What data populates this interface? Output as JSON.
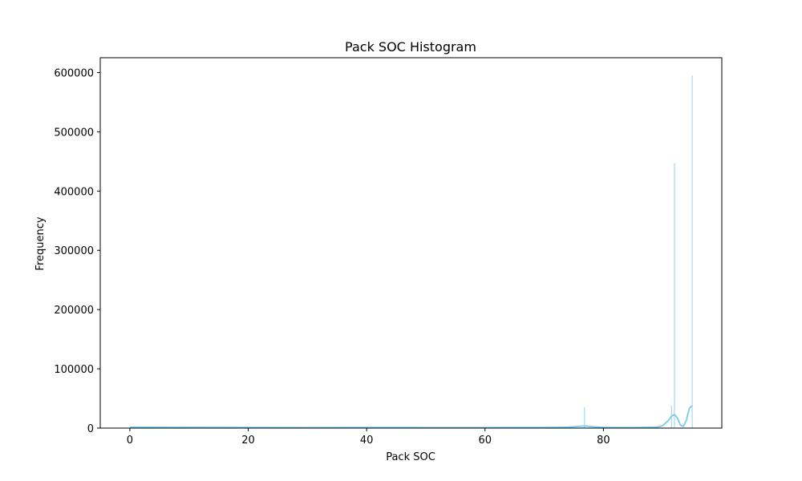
{
  "chart_data": {
    "type": "histogram",
    "title": "Pack SOC Histogram",
    "xlabel": "Pack SOC",
    "ylabel": "Frequency",
    "xlim": [
      -5,
      100
    ],
    "ylim": [
      0,
      625000
    ],
    "x_ticks": [
      0,
      20,
      40,
      60,
      80
    ],
    "x_tick_labels": [
      "0",
      "20",
      "40",
      "60",
      "80"
    ],
    "y_ticks": [
      0,
      100000,
      200000,
      300000,
      400000,
      500000,
      600000
    ],
    "y_tick_labels": [
      "0",
      "100000",
      "200000",
      "300000",
      "400000",
      "500000",
      "600000"
    ],
    "grid": false,
    "legend": "none",
    "bar_color": "#87ceeb",
    "kde_color": "#87ceeb",
    "bars": [
      {
        "x": 76.8,
        "y": 35000
      },
      {
        "x": 91.5,
        "y": 38000
      },
      {
        "x": 92.0,
        "y": 447000
      },
      {
        "x": 95.0,
        "y": 595000
      },
      {
        "x": 0.5,
        "y": 1200
      },
      {
        "x": 12.5,
        "y": 600
      },
      {
        "x": 40.0,
        "y": 800
      },
      {
        "x": 60.0,
        "y": 600
      }
    ],
    "kde": {
      "x": [
        0,
        10,
        20,
        30,
        40,
        50,
        60,
        70,
        74,
        76,
        77,
        78,
        80,
        85,
        89,
        90,
        91,
        91.5,
        92,
        92.5,
        93,
        93.5,
        94,
        94.5,
        95
      ],
      "y": [
        1500,
        1200,
        1000,
        900,
        1000,
        900,
        900,
        1000,
        1500,
        3000,
        3500,
        2500,
        1000,
        800,
        1500,
        4000,
        13000,
        20000,
        23000,
        17000,
        5000,
        3000,
        13000,
        33000,
        38000
      ]
    }
  }
}
